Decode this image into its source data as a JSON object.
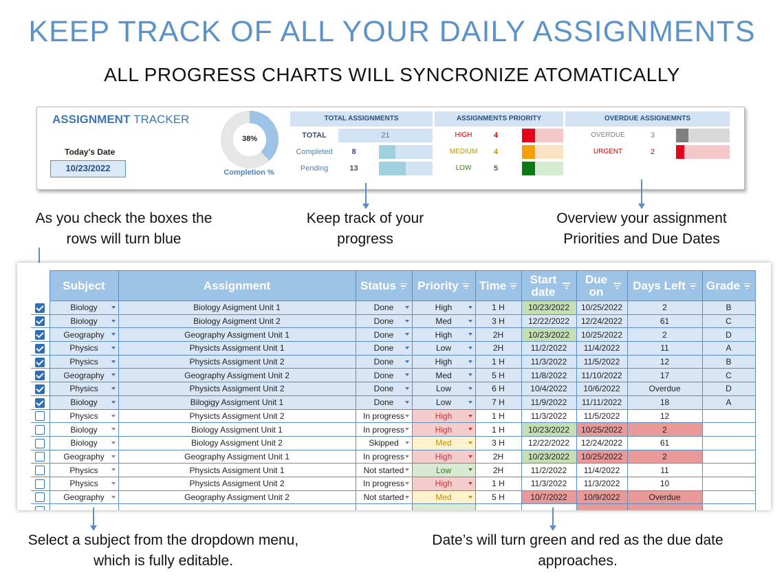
{
  "headline": "KEEP TRACK OF ALL YOUR DAILY ASSIGNMENTS",
  "subhead": "ALL PROGRESS CHARTS WILL SYNCRONIZE ATOMATICALLY",
  "dashboard": {
    "title_bold": "ASSIGNMENT",
    "title_thin": "TRACKER",
    "today_label": "Today's Date",
    "today_value": "10/23/2022",
    "completion_pct_label": "38%",
    "completion_fraction": 0.38,
    "completion_caption": "Completion %",
    "total_box": {
      "header": "TOTAL ASSIGNMENTS",
      "rows": [
        {
          "label": "TOTAL",
          "value": "21"
        },
        {
          "label": "Completed",
          "value": "8",
          "fraction": 0.38
        },
        {
          "label": "Pending",
          "value": "13",
          "fraction": 0.62
        }
      ]
    },
    "priority_box": {
      "header": "ASSIGNMENTS PRIORITY",
      "rows": [
        {
          "label": "HIGH",
          "value": "4",
          "color": "#e8001c",
          "bg": "#f4c7c9"
        },
        {
          "label": "MEDIUM",
          "value": "4",
          "color": "#f5a000",
          "bg": "#fbe2c2"
        },
        {
          "label": "LOW",
          "value": "5",
          "color": "#0a7a12",
          "bg": "#d5ebd2"
        }
      ]
    },
    "overdue_box": {
      "header": "OVERDUE ASSIGNEMNTS",
      "rows": [
        {
          "label": "OVERDUE",
          "value": "3",
          "color": "#7f7f7f",
          "bg": "#d9d9d9"
        },
        {
          "label": "URGENT",
          "value": "2",
          "color": "#e8001c",
          "bg": "#f4c7c9"
        }
      ]
    }
  },
  "notes": {
    "check_boxes": "As you check the boxes the rows will turn blue",
    "progress": "Keep track of your progress",
    "overview": "Overview your assignment Priorities and Due Dates",
    "dropdown": "Select a subject from the dropdown menu, which is fully editable.",
    "dates": "Date’s will turn green and red as the due date approaches."
  },
  "table": {
    "headers": {
      "subject": "Subject",
      "assignment": "Assignment",
      "status": "Status",
      "priority": "Priority",
      "time": "Time",
      "start_date": "Start date",
      "due_on": "Due on",
      "days_left": "Days Left",
      "grade": "Grade"
    },
    "rows": [
      {
        "checked": true,
        "subject": "Biology",
        "assignment": "Biology Asigment Unit 1",
        "status": "Done",
        "priority": "High",
        "time": "1 H",
        "start": "10/23/2022",
        "due": "10/25/2022",
        "days": "2",
        "grade": "B",
        "start_hl": "green",
        "due_hl": "",
        "days_hl": ""
      },
      {
        "checked": true,
        "subject": "Biology",
        "assignment": "Biology Asigment Unit 2",
        "status": "Done",
        "priority": "Med",
        "time": "3 H",
        "start": "12/22/2022",
        "due": "12/24/2022",
        "days": "61",
        "grade": "C",
        "start_hl": "",
        "due_hl": "",
        "days_hl": ""
      },
      {
        "checked": true,
        "subject": "Geography",
        "assignment": "Geography Assigment Unit 1",
        "status": "Done",
        "priority": "High",
        "time": "2H",
        "start": "10/23/2022",
        "due": "10/25/2022",
        "days": "2",
        "grade": "D",
        "start_hl": "green",
        "due_hl": "",
        "days_hl": ""
      },
      {
        "checked": true,
        "subject": "Physics",
        "assignment": "Physicts Assigment Unit 1",
        "status": "Done",
        "priority": "Low",
        "time": "2H",
        "start": "11/2/2022",
        "due": "11/4/2022",
        "days": "11",
        "grade": "A",
        "start_hl": "",
        "due_hl": "",
        "days_hl": ""
      },
      {
        "checked": true,
        "subject": "Physics",
        "assignment": "Physicts Assigment Unit 2",
        "status": "Done",
        "priority": "High",
        "time": "1 H",
        "start": "11/3/2022",
        "due": "11/5/2022",
        "days": "12",
        "grade": "B",
        "start_hl": "",
        "due_hl": "",
        "days_hl": ""
      },
      {
        "checked": true,
        "subject": "Geography",
        "assignment": "Geography Assigment Unit 2",
        "status": "Done",
        "priority": "Med",
        "time": "5 H",
        "start": "11/8/2022",
        "due": "11/10/2022",
        "days": "17",
        "grade": "C",
        "start_hl": "",
        "due_hl": "",
        "days_hl": ""
      },
      {
        "checked": true,
        "subject": "Physics",
        "assignment": "Physicts Assigment Unit 2",
        "status": "Done",
        "priority": "Low",
        "time": "6 H",
        "start": "10/4/2022",
        "due": "10/6/2022",
        "days": "Overdue",
        "grade": "D",
        "start_hl": "",
        "due_hl": "",
        "days_hl": ""
      },
      {
        "checked": true,
        "subject": "Biology",
        "assignment": "Bilogigy Assigment Unit 1",
        "status": "Done",
        "priority": "Low",
        "time": "7 H",
        "start": "11/9/2022",
        "due": "11/11/2022",
        "days": "18",
        "grade": "A",
        "start_hl": "",
        "due_hl": "",
        "days_hl": ""
      },
      {
        "checked": false,
        "subject": "Physics",
        "assignment": "Physicts Assigment Unit 2",
        "status": "In progress",
        "priority": "High",
        "time": "1 H",
        "start": "11/3/2022",
        "due": "11/5/2022",
        "days": "12",
        "grade": "",
        "start_hl": "",
        "due_hl": "",
        "days_hl": ""
      },
      {
        "checked": false,
        "subject": "Biology",
        "assignment": "Biology Assigment Unit 1",
        "status": "In progress",
        "priority": "High",
        "time": "1 H",
        "start": "10/23/2022",
        "due": "10/25/2022",
        "days": "2",
        "grade": "",
        "start_hl": "green",
        "due_hl": "red",
        "days_hl": "red"
      },
      {
        "checked": false,
        "subject": "Biology",
        "assignment": "Biology Assigment Unit 2",
        "status": "Skipped",
        "priority": "Med",
        "time": "3 H",
        "start": "12/22/2022",
        "due": "12/24/2022",
        "days": "61",
        "grade": "",
        "start_hl": "",
        "due_hl": "",
        "days_hl": ""
      },
      {
        "checked": false,
        "subject": "Geography",
        "assignment": "Geography Assigment Unit 1",
        "status": "In progress",
        "priority": "High",
        "time": "2H",
        "start": "10/23/2022",
        "due": "10/25/2022",
        "days": "2",
        "grade": "",
        "start_hl": "green",
        "due_hl": "red",
        "days_hl": "red"
      },
      {
        "checked": false,
        "subject": "Physics",
        "assignment": "Physicts Assigment Unit 1",
        "status": "Not started",
        "priority": "Low",
        "time": "2H",
        "start": "11/2/2022",
        "due": "11/4/2022",
        "days": "11",
        "grade": "",
        "start_hl": "",
        "due_hl": "",
        "days_hl": ""
      },
      {
        "checked": false,
        "subject": "Physics",
        "assignment": "Physicts Assigment Unit 2",
        "status": "In progress",
        "priority": "High",
        "time": "1 H",
        "start": "11/3/2022",
        "due": "11/3/2022",
        "days": "10",
        "grade": "",
        "start_hl": "",
        "due_hl": "",
        "days_hl": ""
      },
      {
        "checked": false,
        "subject": "Geography",
        "assignment": "Geography Assigment Unit 2",
        "status": "Not started",
        "priority": "Med",
        "time": "5 H",
        "start": "10/7/2022",
        "due": "10/9/2022",
        "days": "Overdue",
        "grade": "",
        "start_hl": "red",
        "due_hl": "red",
        "days_hl": "red"
      }
    ]
  },
  "colors": {
    "accent": "#5b93c9",
    "header_fill": "#9dc3e6",
    "done_row": "#d8e6f5",
    "date_green": "#c5dfb4",
    "date_red": "#ea9999",
    "priority_high_bg": "#f4cccc",
    "priority_high_text": "#cc3333",
    "priority_med_bg": "#fff2cc",
    "priority_med_text": "#bf9000",
    "priority_low_bg": "#d9ead3",
    "priority_low_text": "#38761d"
  }
}
